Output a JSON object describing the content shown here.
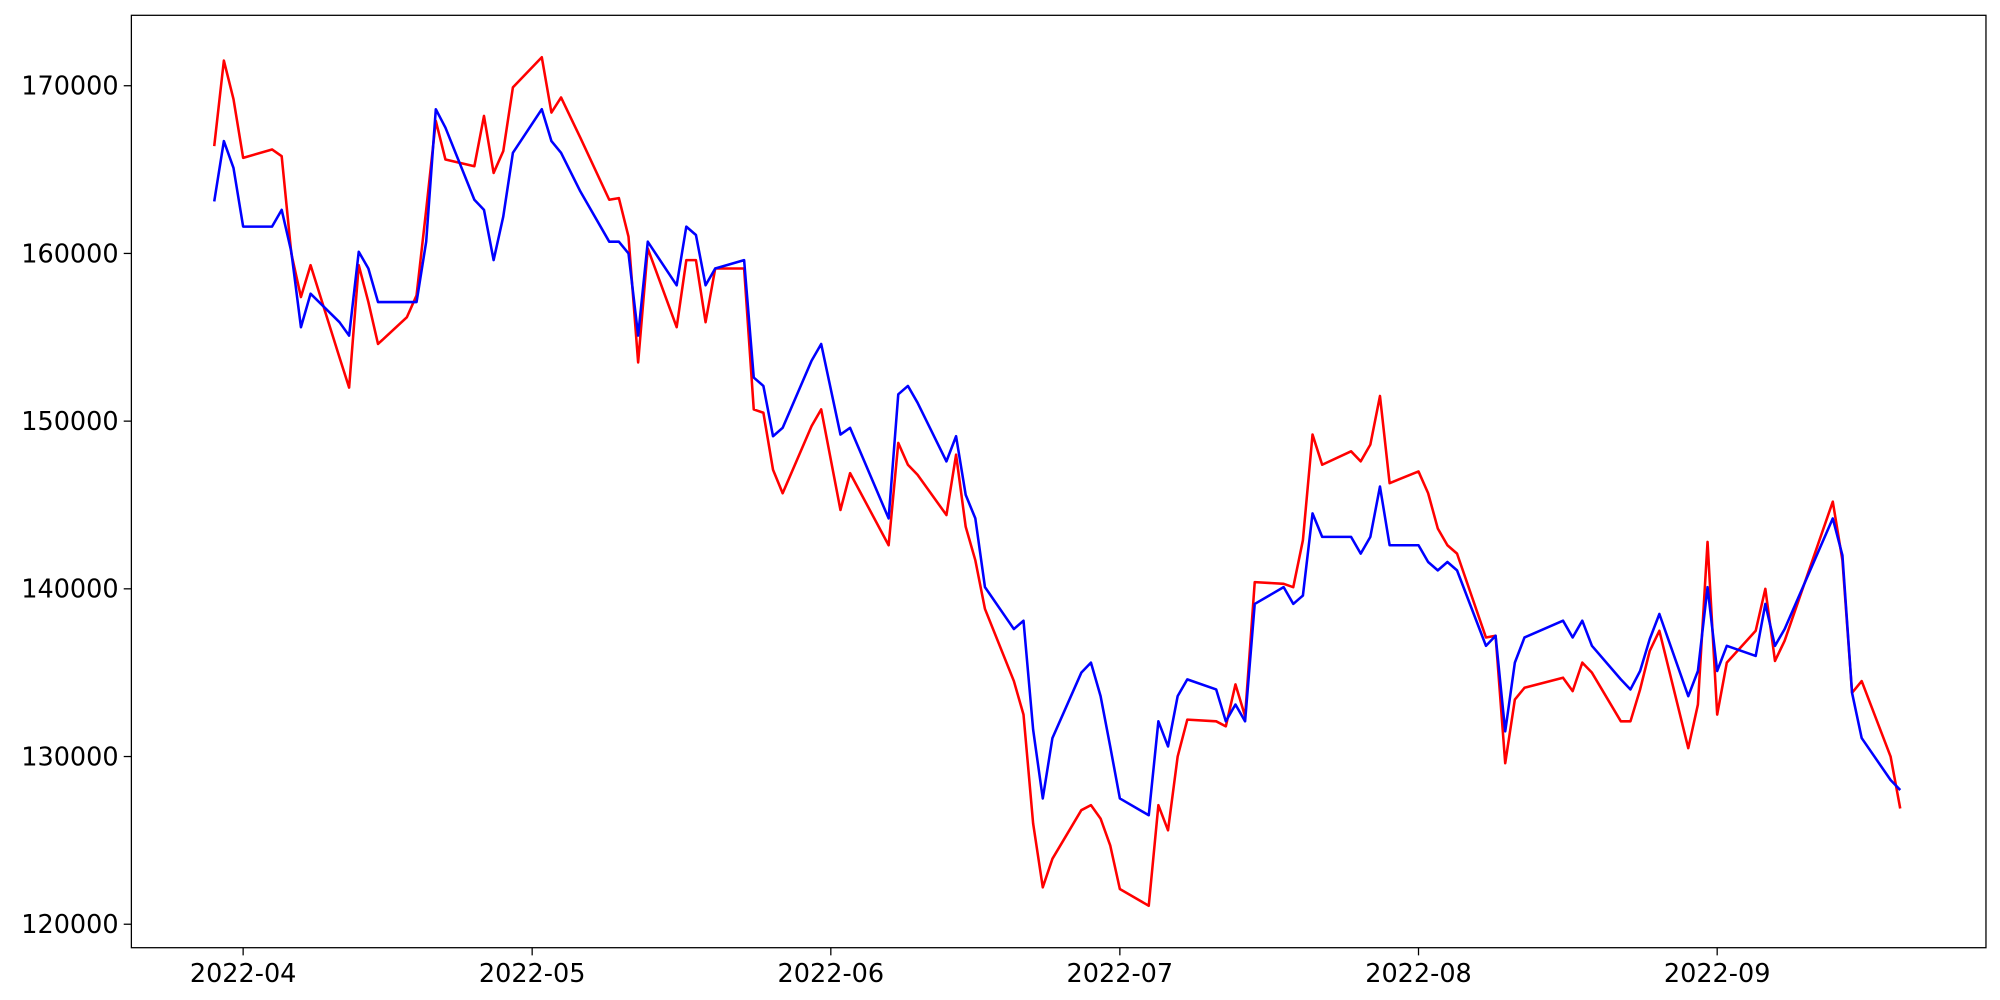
{
  "chart_data": {
    "type": "line",
    "x": [
      88,
      89,
      90,
      91,
      94,
      95,
      96,
      97,
      98,
      101,
      102,
      103,
      104,
      105,
      108,
      109,
      110,
      111,
      112,
      115,
      116,
      117,
      118,
      119,
      122,
      123,
      124,
      126,
      129,
      130,
      131,
      132,
      133,
      136,
      137,
      138,
      139,
      140,
      143,
      144,
      145,
      146,
      147,
      150,
      151,
      153,
      154,
      158,
      159,
      160,
      161,
      164,
      165,
      166,
      167,
      168,
      171,
      172,
      173,
      174,
      175,
      178,
      179,
      180,
      181,
      182,
      185,
      186,
      187,
      188,
      189,
      192,
      193,
      194,
      195,
      196,
      199,
      200,
      201,
      202,
      203,
      206,
      207,
      208,
      209,
      210,
      213,
      214,
      215,
      216,
      217,
      220,
      221,
      222,
      223,
      224,
      228,
      229,
      230,
      231,
      234,
      235,
      236,
      237,
      238,
      241,
      242,
      243,
      244,
      245,
      248,
      249,
      250,
      251,
      256,
      257,
      258,
      259,
      262,
      263
    ],
    "series": [
      {
        "color": "#ff0000",
        "values": [
          166400,
          171500,
          169200,
          165700,
          166200,
          165800,
          160000,
          157400,
          159300,
          153800,
          152000,
          159300,
          157100,
          154600,
          156200,
          157500,
          162600,
          167900,
          165600,
          165200,
          168200,
          164800,
          166100,
          169900,
          171700,
          168400,
          169300,
          166900,
          163200,
          163300,
          161000,
          153500,
          160300,
          155600,
          159600,
          159600,
          155900,
          159100,
          159100,
          150700,
          150500,
          147100,
          145700,
          149700,
          150700,
          144700,
          146900,
          142600,
          148700,
          147400,
          146800,
          144400,
          148000,
          143700,
          141700,
          138800,
          134500,
          132500,
          126000,
          122200,
          123900,
          126800,
          127100,
          126300,
          124700,
          122100,
          121100,
          127100,
          125600,
          130000,
          132200,
          132100,
          131800,
          134300,
          132400,
          140400,
          140300,
          140100,
          142900,
          149200,
          147400,
          148200,
          147600,
          148600,
          151500,
          146300,
          147000,
          145700,
          143600,
          142600,
          142100,
          137100,
          137200,
          129600,
          133400,
          134100,
          134700,
          133900,
          135600,
          135000,
          132100,
          132100,
          134000,
          136300,
          137500,
          130500,
          133100,
          142800,
          132500,
          135600,
          137500,
          140000,
          135700,
          136900,
          145200,
          141700,
          133800,
          134500,
          130000,
          126900
        ]
      },
      {
        "color": "#0000ff",
        "values": [
          163100,
          166700,
          165100,
          161600,
          161600,
          162600,
          160100,
          155600,
          157600,
          155900,
          155100,
          160100,
          159100,
          157100,
          157100,
          157100,
          160700,
          168600,
          167500,
          163200,
          162600,
          159600,
          162200,
          166000,
          168600,
          166700,
          166000,
          163700,
          160700,
          160700,
          160000,
          155100,
          160700,
          158100,
          161600,
          161100,
          158100,
          159100,
          159600,
          152600,
          152100,
          149100,
          149600,
          153600,
          154600,
          149200,
          149600,
          144200,
          151600,
          152100,
          151100,
          147600,
          149100,
          145600,
          144200,
          140100,
          137600,
          138100,
          131600,
          127500,
          131100,
          135000,
          135600,
          133600,
          130600,
          127500,
          126500,
          132100,
          130600,
          133600,
          134600,
          134000,
          132100,
          133100,
          132100,
          139100,
          140100,
          139100,
          139600,
          144500,
          143100,
          143100,
          142100,
          143100,
          146100,
          142600,
          142600,
          141600,
          141100,
          141600,
          141100,
          136600,
          137200,
          131500,
          135600,
          137100,
          138100,
          137100,
          138100,
          136600,
          134600,
          134000,
          135100,
          137000,
          138500,
          133600,
          135100,
          140100,
          135100,
          136600,
          136000,
          139100,
          136600,
          137600,
          144200,
          142000,
          133800,
          131100,
          128600,
          128000
        ]
      }
    ],
    "xlim": [
      79.4,
      271.9
    ],
    "xticks": [
      {
        "value": 91,
        "label": "2022-04"
      },
      {
        "value": 121,
        "label": "2022-05"
      },
      {
        "value": 152,
        "label": "2022-06"
      },
      {
        "value": 182,
        "label": "2022-07"
      },
      {
        "value": 213,
        "label": "2022-08"
      },
      {
        "value": 244,
        "label": "2022-09"
      }
    ],
    "ylim": [
      118600,
      174200
    ],
    "yticks": [
      120000,
      130000,
      140000,
      150000,
      160000,
      170000
    ],
    "grid": false
  }
}
